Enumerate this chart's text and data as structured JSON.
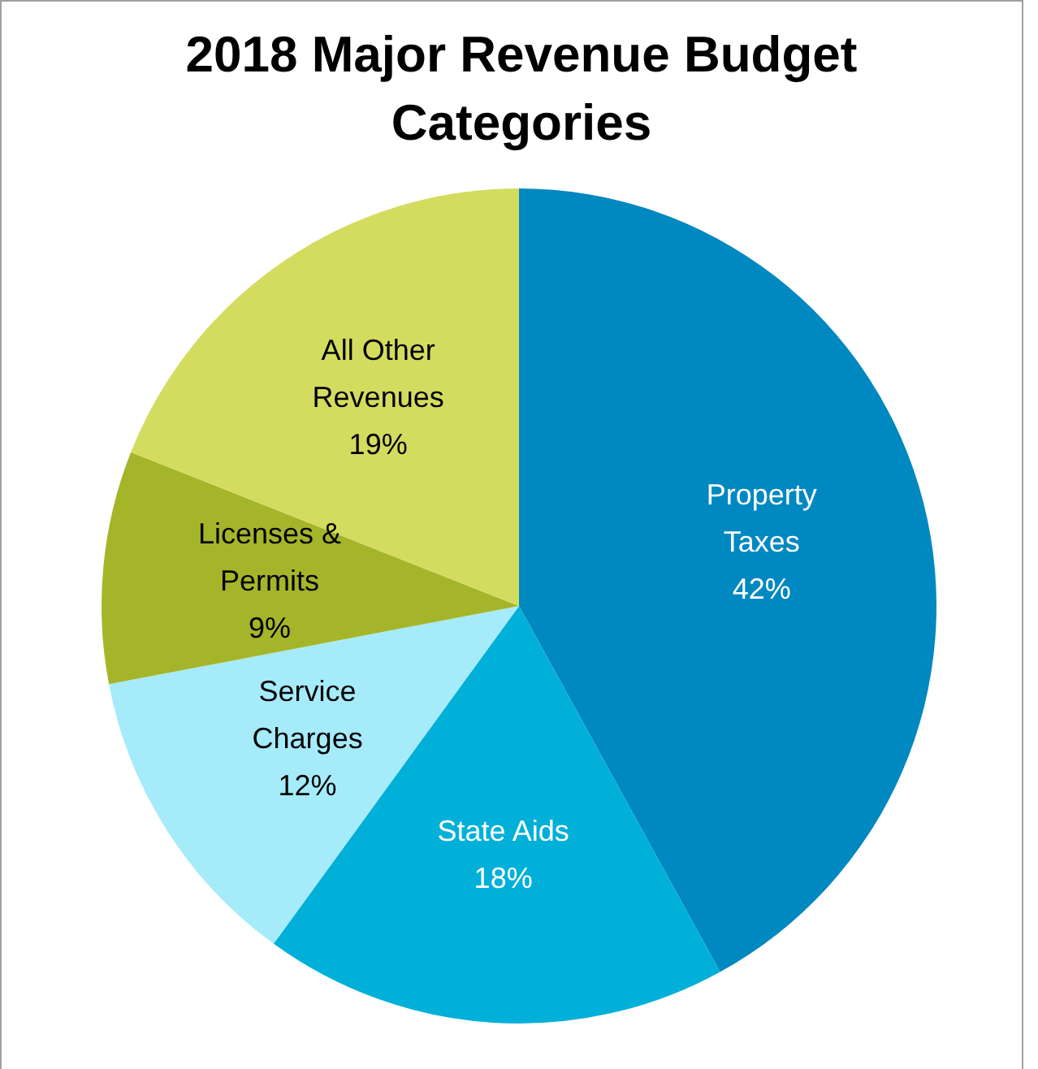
{
  "chart_data": {
    "type": "pie",
    "title": "2018 Major Revenue Budget Categories",
    "categories": [
      "Property Taxes",
      "State Aids",
      "Service Charges",
      "Licenses & Permits",
      "All Other Revenues"
    ],
    "values": [
      42,
      18,
      12,
      9,
      19
    ],
    "colors": [
      "#0088c0",
      "#00b0d8",
      "#a6ebfa",
      "#a5b52a",
      "#d4dc60"
    ],
    "value_labels": [
      "42%",
      "18%",
      "12%",
      "9%",
      "19%"
    ],
    "legend": false
  }
}
